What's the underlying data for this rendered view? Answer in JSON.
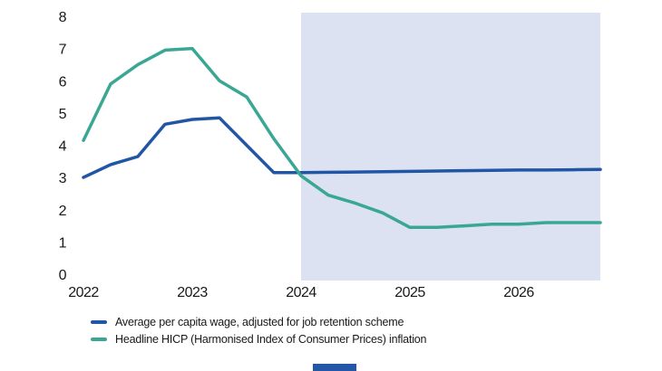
{
  "chart_data": {
    "type": "line",
    "title": "",
    "xlabel": "",
    "ylabel": "",
    "x": [
      2022.0,
      2022.25,
      2022.5,
      2022.75,
      2023.0,
      2023.25,
      2023.5,
      2023.75,
      2024.0,
      2024.25,
      2024.5,
      2024.75,
      2025.0,
      2025.25,
      2025.5,
      2025.75,
      2026.0,
      2026.25,
      2026.5,
      2026.75
    ],
    "series": [
      {
        "name": "Average per capita wage, adjusted for job retention scheme",
        "color": "#2156a5",
        "values": [
          3.0,
          3.4,
          3.65,
          4.65,
          4.8,
          4.85,
          4.0,
          3.15,
          3.15,
          3.16,
          3.17,
          3.18,
          3.19,
          3.2,
          3.21,
          3.22,
          3.23,
          3.23,
          3.24,
          3.25
        ]
      },
      {
        "name": "Headline HICP (Harmonised Index of Consumer Prices) inflation",
        "color": "#3aa795",
        "values": [
          4.15,
          5.9,
          6.5,
          6.95,
          7.0,
          6.0,
          5.5,
          4.2,
          3.05,
          2.45,
          2.2,
          1.9,
          1.45,
          1.45,
          1.5,
          1.55,
          1.55,
          1.6,
          1.6,
          1.6
        ]
      }
    ],
    "x_ticks": [
      {
        "value": 2022,
        "label": "2022"
      },
      {
        "value": 2023,
        "label": "2023"
      },
      {
        "value": 2024,
        "label": "2024"
      },
      {
        "value": 2025,
        "label": "2025"
      },
      {
        "value": 2026,
        "label": "2026"
      }
    ],
    "y_ticks": [
      "0",
      "1",
      "2",
      "3",
      "4",
      "5",
      "6",
      "7",
      "8"
    ],
    "ylim": [
      0,
      8
    ],
    "xlim": [
      2021.85,
      2026.75
    ],
    "grid": false,
    "legend_position": "bottom-left",
    "forecast_shading": {
      "start": 2024.0,
      "end": 2026.75,
      "color": "#dde2f2"
    }
  },
  "ui": {
    "text_color": "#191919",
    "background_color": "#ffffff",
    "accent_bar_color": "#2457a7"
  }
}
